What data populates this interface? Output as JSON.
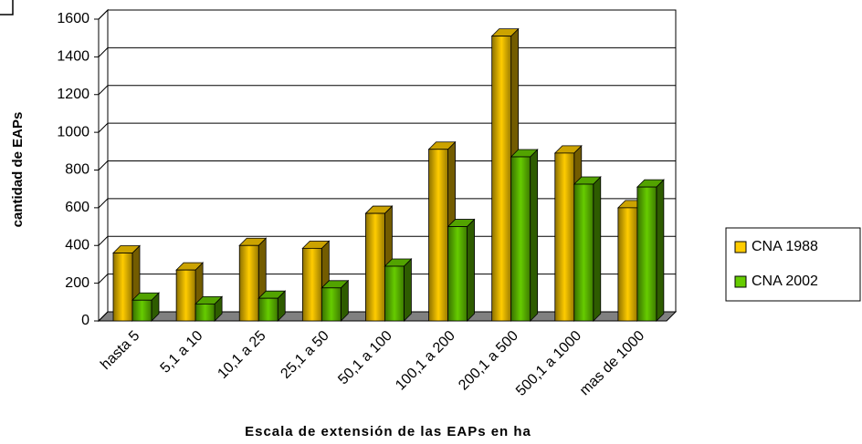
{
  "chart_data": {
    "type": "bar3d",
    "y_label": "cantidad de EAPs",
    "x_label": "Escala de extensión de las EAPs en ha",
    "categories": [
      "hasta 5",
      "5,1 a 10",
      "10,1 a 25",
      "25,1 a 50",
      "50,1 a 100",
      "100,1 a 200",
      "200,1 a 500",
      "500,1 a 1000",
      "mas de 1000"
    ],
    "series": [
      {
        "name": "CNA 1988",
        "color": "#FFCC00",
        "values": [
          360,
          270,
          400,
          385,
          570,
          910,
          1510,
          890,
          600
        ]
      },
      {
        "name": "CNA 2002",
        "color": "#66CC00",
        "values": [
          110,
          90,
          120,
          175,
          290,
          500,
          870,
          725,
          710
        ]
      }
    ],
    "ylim": [
      0,
      1600
    ],
    "yticks": [
      0,
      200,
      400,
      600,
      800,
      1000,
      1200,
      1400,
      1600
    ],
    "grid": true,
    "legend": "right"
  }
}
